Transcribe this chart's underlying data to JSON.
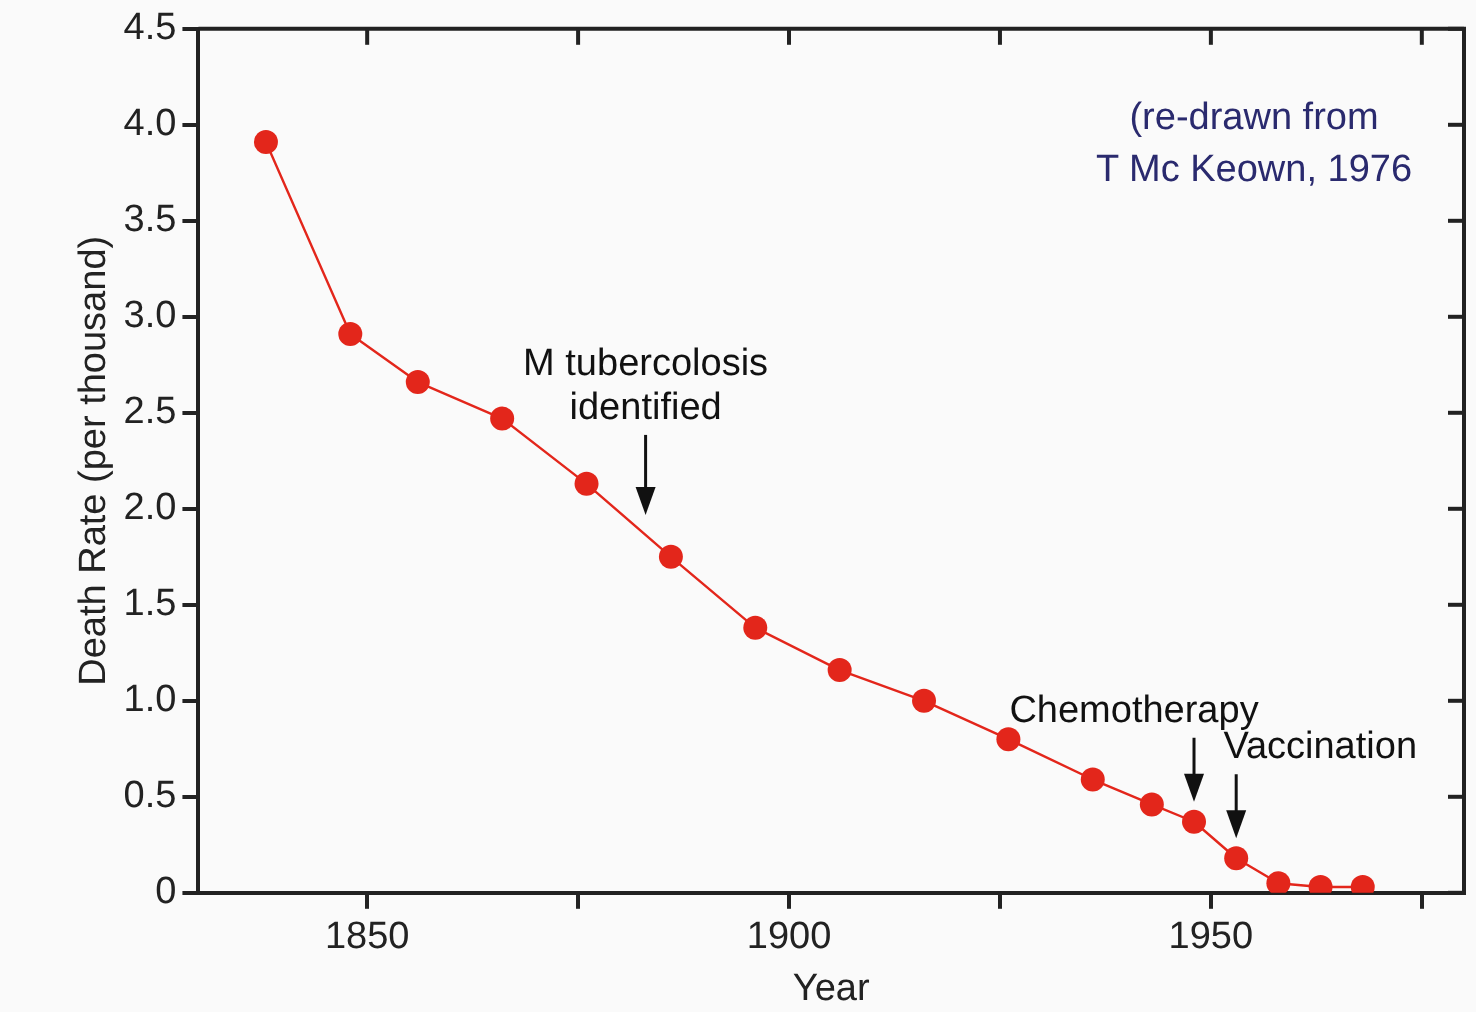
{
  "chart_data": {
    "type": "line",
    "xlabel": "Year",
    "ylabel": "Death Rate (per thousand)",
    "x": [
      1838,
      1848,
      1856,
      1866,
      1876,
      1886,
      1896,
      1906,
      1916,
      1926,
      1936,
      1943,
      1948,
      1953,
      1958,
      1963,
      1968
    ],
    "series": [
      {
        "color": "#e3261b",
        "values": [
          3.91,
          2.91,
          2.66,
          2.47,
          2.13,
          1.75,
          1.38,
          1.16,
          1.0,
          0.8,
          0.59,
          0.46,
          0.37,
          0.18,
          0.05,
          0.03,
          0.03
        ]
      }
    ],
    "xlim": [
      1830,
      1980
    ],
    "xticks": [
      1850,
      {
        "value": 1875,
        "label": null
      },
      1900,
      {
        "value": 1925,
        "label": null
      },
      1950,
      {
        "value": 1975,
        "label": null
      }
    ],
    "ylim": [
      0,
      4.5
    ],
    "yticks": [
      0,
      0.5,
      {
        "value": 1,
        "label": "1.0"
      },
      1.5,
      {
        "value": 2,
        "label": "2.0"
      },
      2.5,
      {
        "value": 3,
        "label": "3.0"
      },
      3.5,
      {
        "value": 4,
        "label": "4.0"
      },
      4.5
    ],
    "annotations": [
      {
        "text": "M tubercolosis\nidentified",
        "x": 1883,
        "y": 1.864
      },
      {
        "text": "Chemotherapy",
        "x": 1948,
        "y": 0.37
      },
      {
        "text": "Vaccination",
        "x": 1953,
        "y": 0.18
      },
      "(re-drawn from\nT Mc Keown, 1976"
    ],
    "grid": false,
    "legend": false,
    "marker": "circle",
    "line_style": "solid"
  }
}
